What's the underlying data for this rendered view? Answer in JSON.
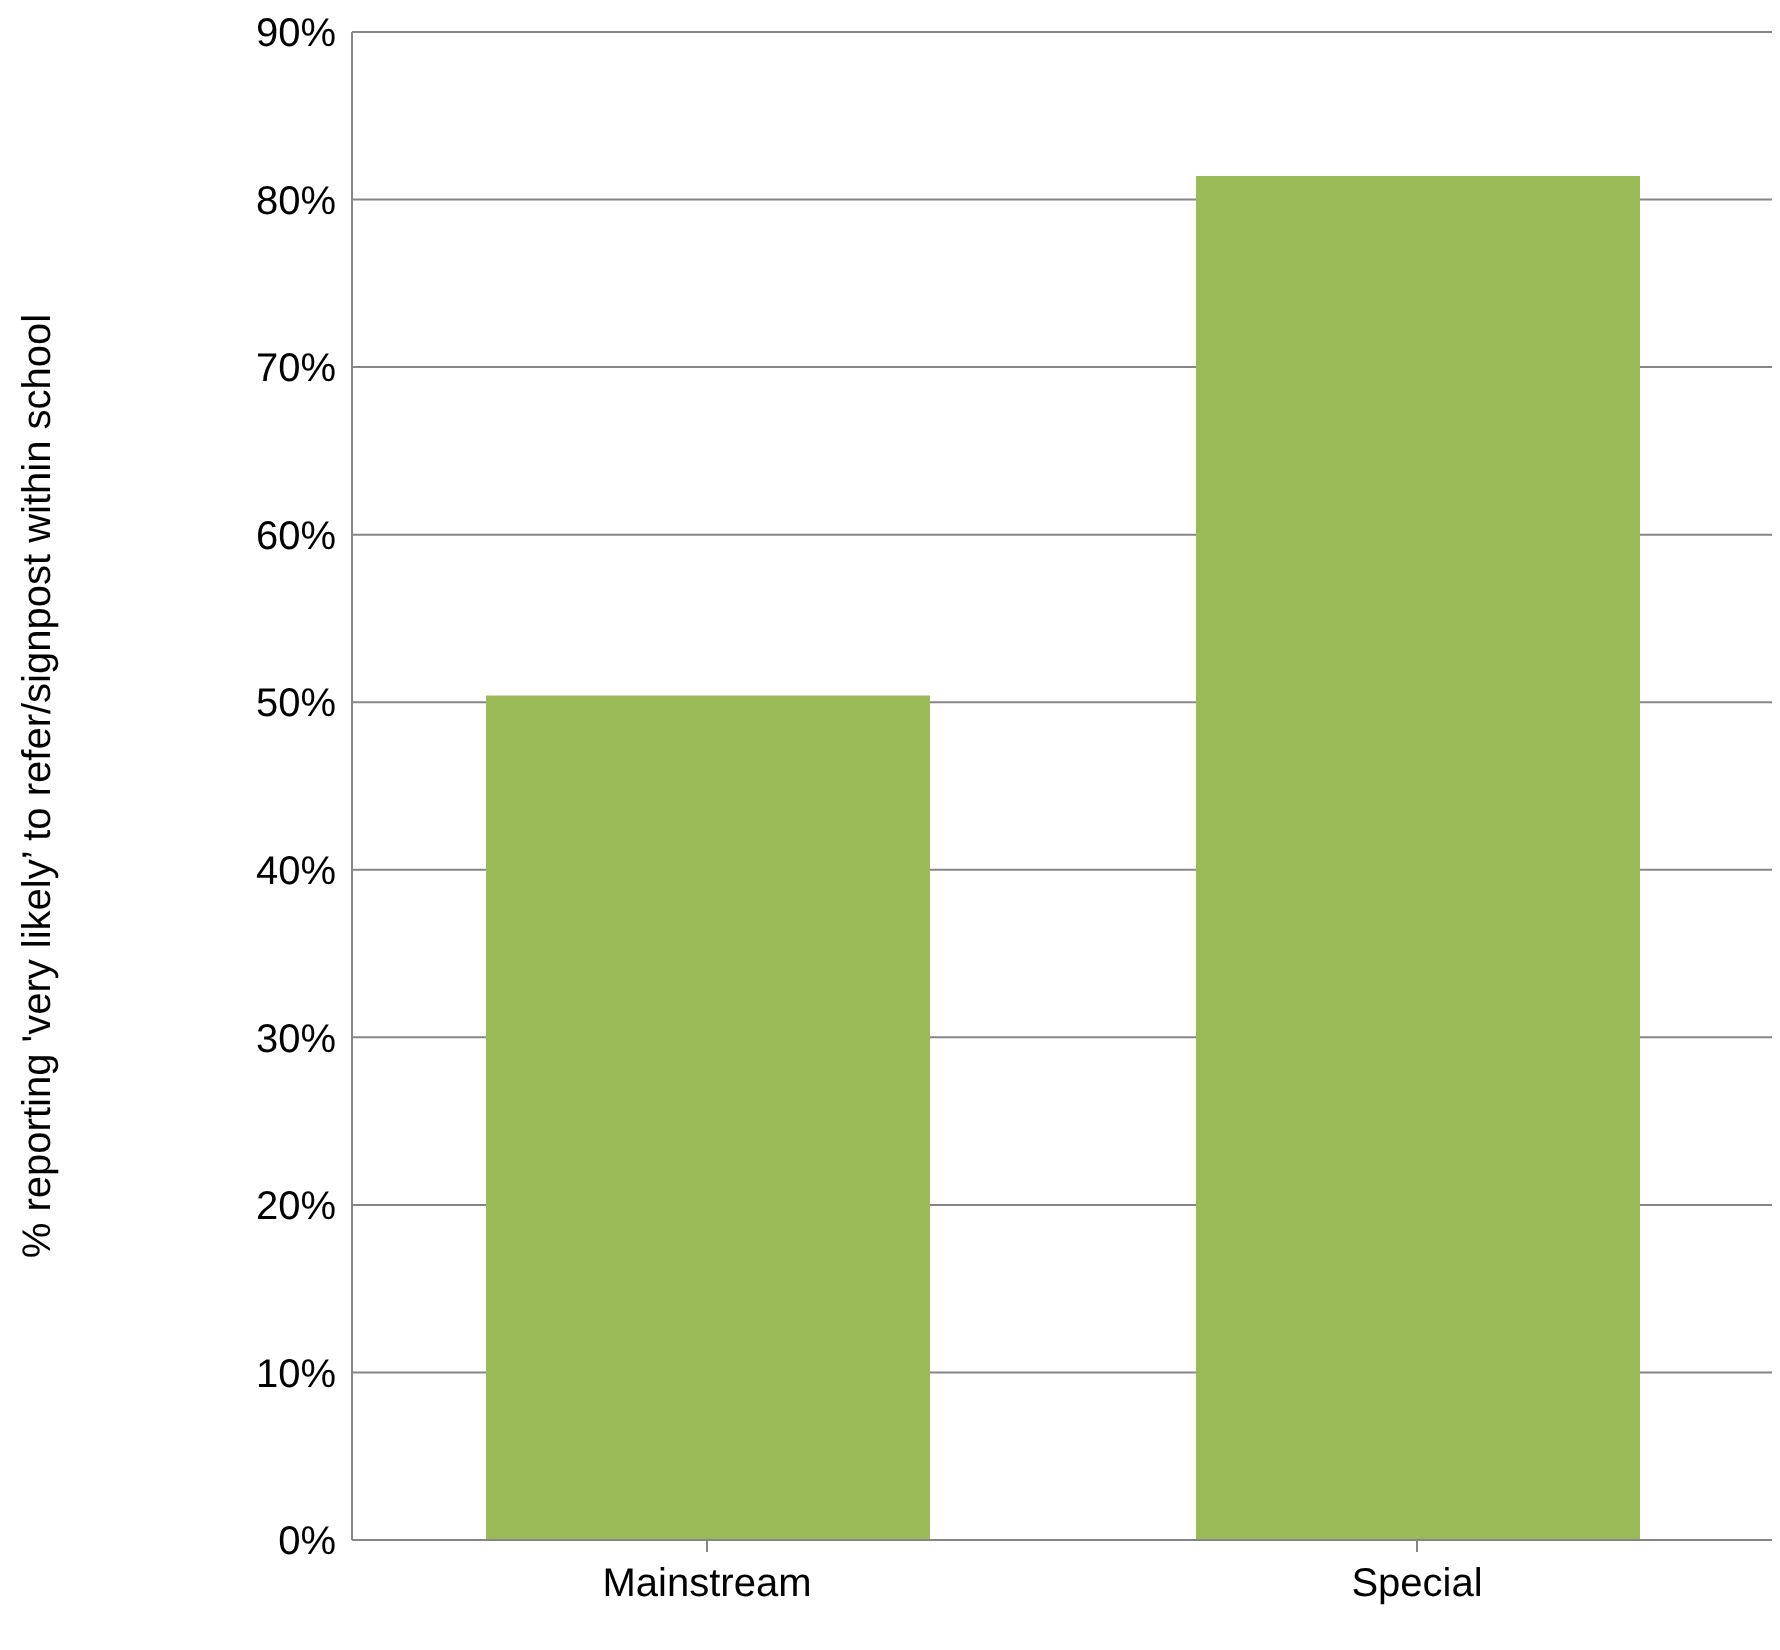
{
  "chart_data": {
    "type": "bar",
    "ylabel": "% reporting 'very likely’ to refer/signpost within school",
    "categories": [
      "Mainstream",
      "Special"
    ],
    "values": [
      50.4,
      81.4
    ],
    "color": "#9bbb59",
    "ylim": [
      0,
      90
    ],
    "yticks": [
      {
        "value": 0,
        "label": "0%"
      },
      {
        "value": 10,
        "label": "10%"
      },
      {
        "value": 20,
        "label": "20%"
      },
      {
        "value": 30,
        "label": "30%"
      },
      {
        "value": 40,
        "label": "40%"
      },
      {
        "value": 50,
        "label": "50%"
      },
      {
        "value": 60,
        "label": "60%"
      },
      {
        "value": 70,
        "label": "70%"
      },
      {
        "value": 80,
        "label": "80%"
      },
      {
        "value": 90,
        "label": "90%"
      }
    ],
    "grid": "y"
  }
}
